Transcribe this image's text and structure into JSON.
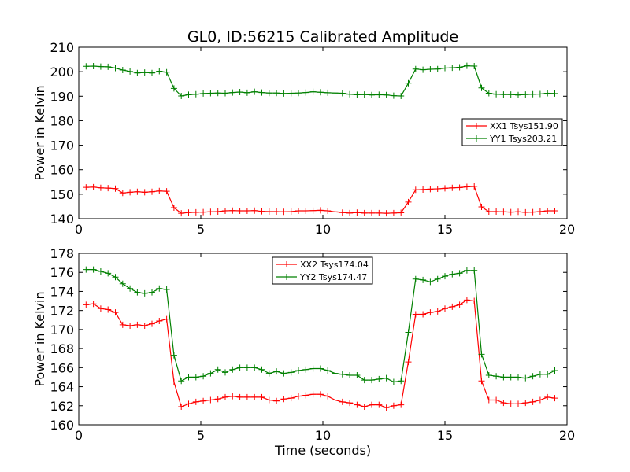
{
  "title": "GL0, ID:56215 Calibrated Amplitude",
  "chart_data": [
    {
      "type": "line",
      "ylabel": "Power in Kelvin",
      "xlabel": "",
      "xlim": [
        0,
        20
      ],
      "ylim": [
        140,
        210
      ],
      "xticks": [
        "0",
        "5",
        "10",
        "15",
        "20"
      ],
      "yticks": [
        "140",
        "150",
        "160",
        "170",
        "180",
        "190",
        "200",
        "210"
      ],
      "grid": false,
      "legend_position": "right",
      "series": [
        {
          "name": "XX1 Tsys151.90",
          "color": "#ff0000",
          "x": [
            0.3,
            0.6,
            0.9,
            1.2,
            1.5,
            1.8,
            2.1,
            2.4,
            2.7,
            3.0,
            3.3,
            3.6,
            3.9,
            4.2,
            4.5,
            4.8,
            5.1,
            5.4,
            5.7,
            6.0,
            6.3,
            6.6,
            6.9,
            7.2,
            7.5,
            7.8,
            8.1,
            8.4,
            8.7,
            9.0,
            9.3,
            9.6,
            9.9,
            10.2,
            10.5,
            10.8,
            11.1,
            11.4,
            11.7,
            12.0,
            12.3,
            12.6,
            12.9,
            13.2,
            13.5,
            13.8,
            14.1,
            14.4,
            14.7,
            15.0,
            15.3,
            15.6,
            15.9,
            16.2,
            16.5,
            16.8,
            17.1,
            17.4,
            17.7,
            18.0,
            18.3,
            18.6,
            18.9,
            19.2,
            19.5
          ],
          "y": [
            152.8,
            152.9,
            152.6,
            152.5,
            152.3,
            150.5,
            150.8,
            151.0,
            150.8,
            151.0,
            151.3,
            151.2,
            144.5,
            142.2,
            142.5,
            142.6,
            142.7,
            142.8,
            142.9,
            143.2,
            143.3,
            143.2,
            143.2,
            143.3,
            143.0,
            142.9,
            142.9,
            142.8,
            142.9,
            143.2,
            143.2,
            143.3,
            143.4,
            143.2,
            142.8,
            142.5,
            142.3,
            142.5,
            142.3,
            142.3,
            142.3,
            142.2,
            142.3,
            142.4,
            146.8,
            151.8,
            151.9,
            152.1,
            152.2,
            152.4,
            152.6,
            152.7,
            153.0,
            153.2,
            144.8,
            142.9,
            142.9,
            142.8,
            142.7,
            142.8,
            142.6,
            142.7,
            142.9,
            143.2,
            143.2
          ]
        },
        {
          "name": "YY1 Tsys203.21",
          "color": "#008000",
          "x": [
            0.3,
            0.6,
            0.9,
            1.2,
            1.5,
            1.8,
            2.1,
            2.4,
            2.7,
            3.0,
            3.3,
            3.6,
            3.9,
            4.2,
            4.5,
            4.8,
            5.1,
            5.4,
            5.7,
            6.0,
            6.3,
            6.6,
            6.9,
            7.2,
            7.5,
            7.8,
            8.1,
            8.4,
            8.7,
            9.0,
            9.3,
            9.6,
            9.9,
            10.2,
            10.5,
            10.8,
            11.1,
            11.4,
            11.7,
            12.0,
            12.3,
            12.6,
            12.9,
            13.2,
            13.5,
            13.8,
            14.1,
            14.4,
            14.7,
            15.0,
            15.3,
            15.6,
            15.9,
            16.2,
            16.5,
            16.8,
            17.1,
            17.4,
            17.7,
            18.0,
            18.3,
            18.6,
            18.9,
            19.2,
            19.5
          ],
          "y": [
            202.2,
            202.3,
            202.1,
            202.0,
            201.5,
            200.7,
            200.1,
            199.5,
            199.7,
            199.5,
            200.2,
            199.8,
            193.2,
            190.1,
            190.6,
            190.8,
            191.1,
            191.2,
            191.3,
            191.2,
            191.5,
            191.7,
            191.4,
            191.8,
            191.5,
            191.3,
            191.3,
            191.1,
            191.2,
            191.3,
            191.5,
            191.8,
            191.6,
            191.4,
            191.3,
            191.2,
            190.8,
            190.6,
            190.7,
            190.5,
            190.6,
            190.5,
            190.2,
            190.1,
            195.3,
            201.1,
            200.8,
            201.0,
            201.1,
            201.5,
            201.6,
            201.8,
            202.4,
            202.3,
            193.4,
            191.2,
            190.8,
            190.7,
            190.7,
            190.5,
            190.7,
            190.8,
            190.9,
            191.2,
            191.1
          ]
        }
      ]
    },
    {
      "type": "line",
      "ylabel": "Power in Kelvin",
      "xlabel": "Time (seconds)",
      "xlim": [
        0,
        20
      ],
      "ylim": [
        160,
        178
      ],
      "xticks": [
        "0",
        "5",
        "10",
        "15",
        "20"
      ],
      "yticks": [
        "160",
        "162",
        "164",
        "166",
        "168",
        "170",
        "172",
        "174",
        "176",
        "178"
      ],
      "grid": false,
      "legend_position": "top-center",
      "series": [
        {
          "name": "XX2 Tsys174.04",
          "color": "#ff0000",
          "x": [
            0.3,
            0.6,
            0.9,
            1.2,
            1.5,
            1.8,
            2.1,
            2.4,
            2.7,
            3.0,
            3.3,
            3.6,
            3.9,
            4.2,
            4.5,
            4.8,
            5.1,
            5.4,
            5.7,
            6.0,
            6.3,
            6.6,
            6.9,
            7.2,
            7.5,
            7.8,
            8.1,
            8.4,
            8.7,
            9.0,
            9.3,
            9.6,
            9.9,
            10.2,
            10.5,
            10.8,
            11.1,
            11.4,
            11.7,
            12.0,
            12.3,
            12.6,
            12.9,
            13.2,
            13.5,
            13.8,
            14.1,
            14.4,
            14.7,
            15.0,
            15.3,
            15.6,
            15.9,
            16.2,
            16.5,
            16.8,
            17.1,
            17.4,
            17.7,
            18.0,
            18.3,
            18.6,
            18.9,
            19.2,
            19.5
          ],
          "y": [
            172.6,
            172.7,
            172.2,
            172.1,
            171.8,
            170.5,
            170.4,
            170.5,
            170.4,
            170.6,
            170.9,
            171.1,
            164.5,
            161.9,
            162.2,
            162.4,
            162.5,
            162.6,
            162.7,
            162.9,
            163.0,
            162.9,
            162.9,
            162.9,
            162.9,
            162.6,
            162.5,
            162.7,
            162.8,
            163.0,
            163.1,
            163.2,
            163.2,
            163.0,
            162.6,
            162.4,
            162.3,
            162.1,
            161.9,
            162.1,
            162.1,
            161.8,
            162.0,
            162.1,
            166.6,
            171.6,
            171.6,
            171.8,
            171.9,
            172.2,
            172.4,
            172.6,
            173.1,
            173.0,
            164.6,
            162.6,
            162.6,
            162.3,
            162.2,
            162.2,
            162.3,
            162.4,
            162.6,
            162.9,
            162.8
          ]
        },
        {
          "name": "YY2 Tsys174.47",
          "color": "#008000",
          "x": [
            0.3,
            0.6,
            0.9,
            1.2,
            1.5,
            1.8,
            2.1,
            2.4,
            2.7,
            3.0,
            3.3,
            3.6,
            3.9,
            4.2,
            4.5,
            4.8,
            5.1,
            5.4,
            5.7,
            6.0,
            6.3,
            6.6,
            6.9,
            7.2,
            7.5,
            7.8,
            8.1,
            8.4,
            8.7,
            9.0,
            9.3,
            9.6,
            9.9,
            10.2,
            10.5,
            10.8,
            11.1,
            11.4,
            11.7,
            12.0,
            12.3,
            12.6,
            12.9,
            13.2,
            13.5,
            13.8,
            14.1,
            14.4,
            14.7,
            15.0,
            15.3,
            15.6,
            15.9,
            16.2,
            16.5,
            16.8,
            17.1,
            17.4,
            17.7,
            18.0,
            18.3,
            18.6,
            18.9,
            19.2,
            19.5
          ],
          "y": [
            176.3,
            176.3,
            176.1,
            175.9,
            175.5,
            174.8,
            174.3,
            173.9,
            173.8,
            173.9,
            174.3,
            174.2,
            167.3,
            164.6,
            165.0,
            165.0,
            165.1,
            165.4,
            165.8,
            165.5,
            165.8,
            166.0,
            166.0,
            166.0,
            165.8,
            165.4,
            165.6,
            165.4,
            165.5,
            165.7,
            165.8,
            165.9,
            165.9,
            165.7,
            165.4,
            165.3,
            165.2,
            165.2,
            164.7,
            164.7,
            164.8,
            164.9,
            164.5,
            164.6,
            169.7,
            175.3,
            175.2,
            175.0,
            175.3,
            175.6,
            175.8,
            175.9,
            176.2,
            176.2,
            167.4,
            165.2,
            165.1,
            165.0,
            165.0,
            165.0,
            164.9,
            165.1,
            165.3,
            165.3,
            165.7
          ]
        }
      ]
    }
  ]
}
